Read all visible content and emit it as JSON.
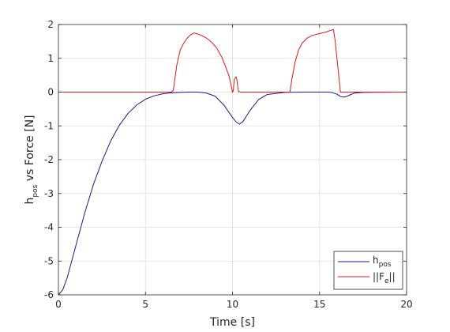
{
  "chart_data": {
    "type": "line",
    "xlabel": "Time [s]",
    "ylabel": {
      "main": "h",
      "sub": "pos",
      "rest": " vs Force [N]"
    },
    "xlim": [
      0,
      20
    ],
    "ylim": [
      -6,
      2
    ],
    "xticks": [
      0,
      5,
      10,
      15,
      20
    ],
    "yticks": [
      -6,
      -5,
      -4,
      -3,
      -2,
      -1,
      0,
      1,
      2
    ],
    "grid": true,
    "legend_position": "bottom-right",
    "series": [
      {
        "legend": {
          "main": "h",
          "sub": "pos",
          "post": ""
        },
        "color": "#1a1a8c",
        "x": [
          0,
          0.25,
          0.5,
          1,
          1.5,
          2,
          2.5,
          3,
          3.5,
          4,
          4.5,
          5,
          5.5,
          6,
          6.5,
          7,
          7.5,
          8,
          8.5,
          9,
          9.5,
          10,
          10.2,
          10.4,
          10.6,
          11,
          11.5,
          12,
          13,
          14,
          15,
          15.5,
          15.7,
          16,
          16.2,
          16.4,
          16.6,
          16.8,
          17,
          17.5,
          20
        ],
        "y": [
          -6,
          -5.85,
          -5.5,
          -4.55,
          -3.6,
          -2.75,
          -2.05,
          -1.45,
          -0.98,
          -0.63,
          -0.38,
          -0.21,
          -0.11,
          -0.05,
          -0.02,
          -0.01,
          0,
          0,
          -0.03,
          -0.12,
          -0.38,
          -0.75,
          -0.88,
          -0.95,
          -0.87,
          -0.55,
          -0.22,
          -0.07,
          -0.01,
          0,
          0,
          0,
          -0.01,
          -0.06,
          -0.13,
          -0.15,
          -0.12,
          -0.07,
          -0.03,
          -0.01,
          0
        ]
      },
      {
        "legend": {
          "main": "||F",
          "sub": "e",
          "post": "||"
        },
        "color": "#d9191c",
        "x": [
          0,
          6.5,
          6.6,
          6.8,
          7,
          7.2,
          7.4,
          7.6,
          7.8,
          8,
          8.2,
          8.5,
          8.8,
          9.1,
          9.4,
          9.6,
          9.8,
          9.9,
          10,
          10.05,
          10.1,
          10.2,
          10.25,
          10.3,
          10.35,
          10.45,
          13.3,
          13.4,
          13.6,
          13.8,
          14,
          14.3,
          14.6,
          15,
          15.4,
          15.6,
          15.8,
          15.9,
          16.2,
          20
        ],
        "y": [
          0,
          0,
          0.05,
          0.8,
          1.25,
          1.45,
          1.6,
          1.7,
          1.75,
          1.72,
          1.68,
          1.6,
          1.48,
          1.3,
          1.02,
          0.75,
          0.48,
          0.25,
          0.0,
          0.05,
          0.38,
          0.45,
          0.38,
          0.15,
          0.02,
          0,
          0,
          0.35,
          0.9,
          1.25,
          1.45,
          1.6,
          1.68,
          1.73,
          1.78,
          1.82,
          1.85,
          1.5,
          0,
          0
        ]
      }
    ]
  }
}
